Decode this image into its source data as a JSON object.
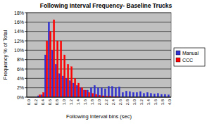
{
  "chart_data": {
    "type": "bar",
    "title": "Following Interval Frequency- Baseline Trucks",
    "x_label": "Following Interval bins (sec)",
    "y_label": "Frequency % of Total",
    "categories": [
      "0.0",
      null,
      "0.2",
      null,
      "0.4",
      null,
      "0.6",
      null,
      "0.8",
      null,
      "1.0",
      null,
      "1.2",
      null,
      "1.4",
      null,
      "1.6",
      null,
      "1.8",
      null,
      "2.0",
      null,
      "2.2",
      null,
      "2.4",
      null,
      "2.6",
      null,
      "2.8",
      null,
      "3.0",
      null,
      "3.2",
      null,
      "3.4",
      null,
      "3.6",
      null,
      "3.8",
      null,
      "4.0"
    ],
    "series": [
      {
        "name": "Manual",
        "color": "#3030d0",
        "values": [
          0,
          0,
          0,
          0.3,
          0.5,
          9,
          16,
          10,
          7,
          5,
          4.5,
          4,
          3.5,
          3,
          2.5,
          2,
          1.5,
          1.5,
          2,
          2.5,
          2,
          2,
          1.8,
          2.3,
          2.3,
          2,
          2.2,
          1,
          1.3,
          1.2,
          1,
          1,
          1.2,
          0.8,
          1,
          0.8,
          0.7,
          0.8,
          0.6,
          0.6,
          0.5
        ]
      },
      {
        "name": "CCC",
        "color": "#ff0000",
        "values": [
          0,
          0,
          0,
          0.5,
          1,
          12,
          14,
          16.5,
          12,
          12,
          9,
          7,
          6.5,
          4,
          3,
          2,
          1.5,
          1,
          0.8,
          0.6,
          0.4,
          0.3,
          0.2,
          0.2,
          0.1,
          0.1,
          0,
          0,
          0,
          0,
          0,
          0,
          0,
          0,
          0,
          0,
          0,
          0,
          0,
          0,
          0
        ]
      }
    ],
    "ylim": [
      0,
      18
    ],
    "yticks": [
      {
        "value": 0,
        "label": "0%"
      },
      {
        "value": 2,
        "label": "2%"
      },
      {
        "value": 4,
        "label": "4%"
      },
      {
        "value": 6,
        "label": "6%"
      },
      {
        "value": 8,
        "label": "8%"
      },
      {
        "value": 10,
        "label": "10%"
      },
      {
        "value": 12,
        "label": "12%"
      },
      {
        "value": 14,
        "label": "14%"
      },
      {
        "value": 16,
        "label": "16%"
      },
      {
        "value": 18,
        "label": "18%"
      }
    ],
    "grid": true,
    "legend": "right"
  }
}
